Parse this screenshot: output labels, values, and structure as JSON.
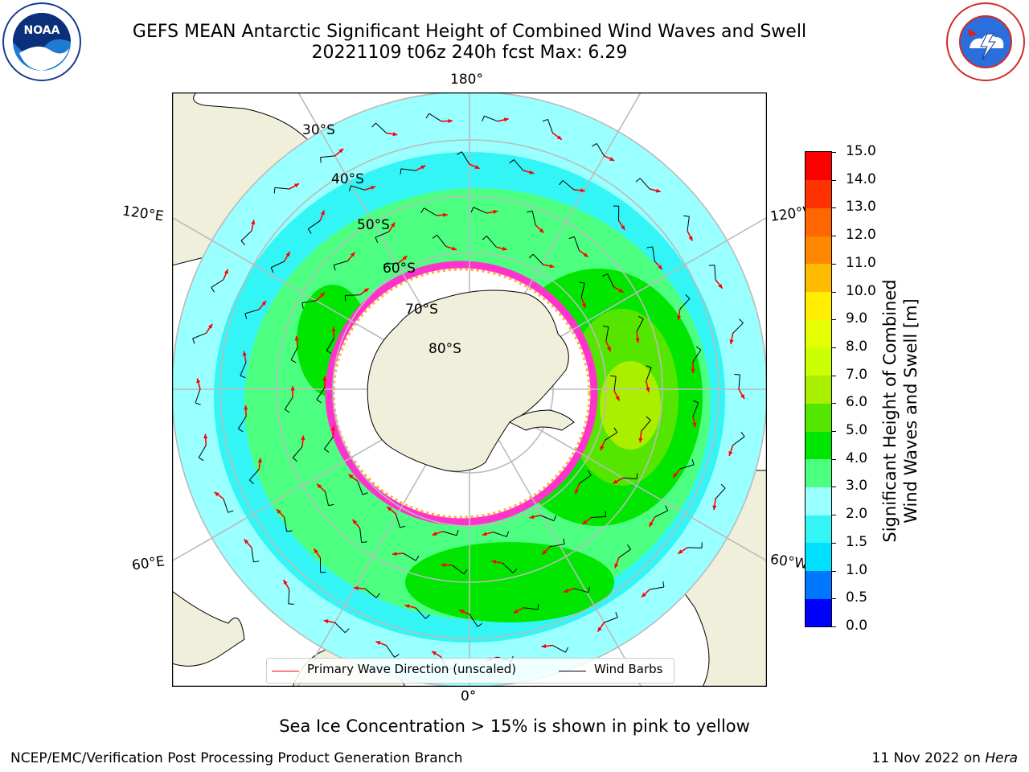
{
  "header": {
    "title_line1": "GEFS MEAN Antarctic Significant Height of Combined Wind Waves and Swell",
    "title_line2": "20221109 t06z 240h fcst   Max: 6.29"
  },
  "logos": {
    "noaa": {
      "text": "NOAA",
      "ring_text": "NATIONAL OCEANIC AND ATMOSPHERIC ADMINISTRATION · U.S. DEPARTMENT OF COMMERCE"
    },
    "nws": {
      "ring_text": "NATIONAL WEATHER SERVICE"
    }
  },
  "map": {
    "projection": "south-polar stereographic",
    "longitude_labels": {
      "top": "180°",
      "bottom": "0°",
      "upper_left": "120°E",
      "lower_left": "60°E",
      "upper_right": "120°W",
      "lower_right": "60°W"
    },
    "latitude_labels": [
      "30°S",
      "40°S",
      "50°S",
      "60°S",
      "70°S",
      "80°S"
    ],
    "colors": {
      "ocean_background": "#ffffff",
      "land": "#efefdc",
      "graticule": "#bbbbbb",
      "arrow": "#ff0000",
      "barb": "#000000",
      "sea_ice": "#ff33cc",
      "sea_ice_edge": "#ffaa33"
    }
  },
  "colorbar": {
    "label_line1": "Significant Height of Combined",
    "label_line2": "Wind Waves and Swell [m]",
    "ticks": [
      "0.0",
      "0.5",
      "1.0",
      "1.5",
      "2.0",
      "3.0",
      "4.0",
      "5.0",
      "6.0",
      "7.0",
      "8.0",
      "9.0",
      "10.0",
      "11.0",
      "12.0",
      "13.0",
      "14.0",
      "15.0"
    ],
    "colors": [
      "#0000ff",
      "#0077ff",
      "#00e0ff",
      "#33f5f5",
      "#99ffff",
      "#4dff80",
      "#00e600",
      "#55e600",
      "#aaee00",
      "#ccff00",
      "#e6ff00",
      "#ffee00",
      "#ffbb00",
      "#ff8800",
      "#ff6600",
      "#ff3300",
      "#ff0000"
    ]
  },
  "legend": {
    "primary_wave": "Primary Wave Direction (unscaled)",
    "wind_barbs": "Wind Barbs"
  },
  "footer": {
    "subtitle": "Sea Ice Concentration > 15% is shown in pink to yellow",
    "credit": "NCEP/EMC/Verification Post Processing Product Generation Branch",
    "date": "11 Nov 2022 on ",
    "host": "Hera"
  }
}
